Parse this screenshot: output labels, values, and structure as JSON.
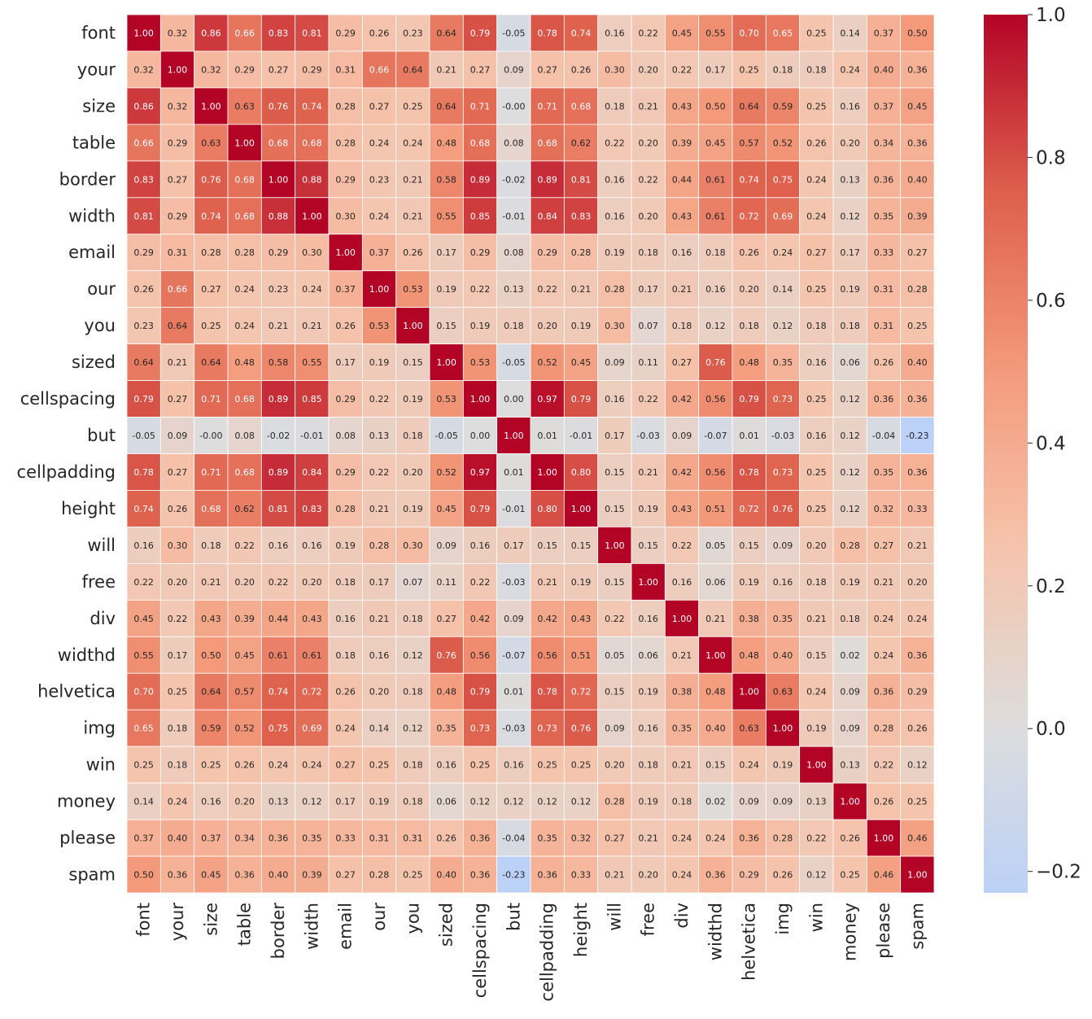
{
  "chart_data": {
    "type": "heatmap",
    "title": "",
    "xlabel": "",
    "ylabel": "",
    "labels": [
      "font",
      "your",
      "size",
      "table",
      "border",
      "width",
      "email",
      "our",
      "you",
      "sized",
      "cellspacing",
      "but",
      "cellpadding",
      "height",
      "will",
      "free",
      "div",
      "widthd",
      "helvetica",
      "img",
      "win",
      "money",
      "please",
      "spam"
    ],
    "matrix": [
      [
        1.0,
        0.32,
        0.86,
        0.66,
        0.83,
        0.81,
        0.29,
        0.26,
        0.23,
        0.64,
        0.79,
        -0.05,
        0.78,
        0.74,
        0.16,
        0.22,
        0.45,
        0.55,
        0.7,
        0.65,
        0.25,
        0.14,
        0.37,
        0.5
      ],
      [
        0.32,
        1.0,
        0.32,
        0.29,
        0.27,
        0.29,
        0.31,
        0.66,
        0.64,
        0.21,
        0.27,
        0.09,
        0.27,
        0.26,
        0.3,
        0.2,
        0.22,
        0.17,
        0.25,
        0.18,
        0.18,
        0.24,
        0.4,
        0.36
      ],
      [
        0.86,
        0.32,
        1.0,
        0.63,
        0.76,
        0.74,
        0.28,
        0.27,
        0.25,
        0.64,
        0.71,
        -0.0,
        0.71,
        0.68,
        0.18,
        0.21,
        0.43,
        0.5,
        0.64,
        0.59,
        0.25,
        0.16,
        0.37,
        0.45
      ],
      [
        0.66,
        0.29,
        0.63,
        1.0,
        0.68,
        0.68,
        0.28,
        0.24,
        0.24,
        0.48,
        0.68,
        0.08,
        0.68,
        0.62,
        0.22,
        0.2,
        0.39,
        0.45,
        0.57,
        0.52,
        0.26,
        0.2,
        0.34,
        0.36
      ],
      [
        0.83,
        0.27,
        0.76,
        0.68,
        1.0,
        0.88,
        0.29,
        0.23,
        0.21,
        0.58,
        0.89,
        -0.02,
        0.89,
        0.81,
        0.16,
        0.22,
        0.44,
        0.61,
        0.74,
        0.75,
        0.24,
        0.13,
        0.36,
        0.4
      ],
      [
        0.81,
        0.29,
        0.74,
        0.68,
        0.88,
        1.0,
        0.3,
        0.24,
        0.21,
        0.55,
        0.85,
        -0.01,
        0.84,
        0.83,
        0.16,
        0.2,
        0.43,
        0.61,
        0.72,
        0.69,
        0.24,
        0.12,
        0.35,
        0.39
      ],
      [
        0.29,
        0.31,
        0.28,
        0.28,
        0.29,
        0.3,
        1.0,
        0.37,
        0.26,
        0.17,
        0.29,
        0.08,
        0.29,
        0.28,
        0.19,
        0.18,
        0.16,
        0.18,
        0.26,
        0.24,
        0.27,
        0.17,
        0.33,
        0.27
      ],
      [
        0.26,
        0.66,
        0.27,
        0.24,
        0.23,
        0.24,
        0.37,
        1.0,
        0.53,
        0.19,
        0.22,
        0.13,
        0.22,
        0.21,
        0.28,
        0.17,
        0.21,
        0.16,
        0.2,
        0.14,
        0.25,
        0.19,
        0.31,
        0.28
      ],
      [
        0.23,
        0.64,
        0.25,
        0.24,
        0.21,
        0.21,
        0.26,
        0.53,
        1.0,
        0.15,
        0.19,
        0.18,
        0.2,
        0.19,
        0.3,
        0.07,
        0.18,
        0.12,
        0.18,
        0.12,
        0.18,
        0.18,
        0.31,
        0.25
      ],
      [
        0.64,
        0.21,
        0.64,
        0.48,
        0.58,
        0.55,
        0.17,
        0.19,
        0.15,
        1.0,
        0.53,
        -0.05,
        0.52,
        0.45,
        0.09,
        0.11,
        0.27,
        0.76,
        0.48,
        0.35,
        0.16,
        0.06,
        0.26,
        0.4
      ],
      [
        0.79,
        0.27,
        0.71,
        0.68,
        0.89,
        0.85,
        0.29,
        0.22,
        0.19,
        0.53,
        1.0,
        0.0,
        0.97,
        0.79,
        0.16,
        0.22,
        0.42,
        0.56,
        0.79,
        0.73,
        0.25,
        0.12,
        0.36,
        0.36
      ],
      [
        -0.05,
        0.09,
        -0.0,
        0.08,
        -0.02,
        -0.01,
        0.08,
        0.13,
        0.18,
        -0.05,
        0.0,
        1.0,
        0.01,
        -0.01,
        0.17,
        -0.03,
        0.09,
        -0.07,
        0.01,
        -0.03,
        0.16,
        0.12,
        -0.04,
        -0.23
      ],
      [
        0.78,
        0.27,
        0.71,
        0.68,
        0.89,
        0.84,
        0.29,
        0.22,
        0.2,
        0.52,
        0.97,
        0.01,
        1.0,
        0.8,
        0.15,
        0.21,
        0.42,
        0.56,
        0.78,
        0.73,
        0.25,
        0.12,
        0.35,
        0.36
      ],
      [
        0.74,
        0.26,
        0.68,
        0.62,
        0.81,
        0.83,
        0.28,
        0.21,
        0.19,
        0.45,
        0.79,
        -0.01,
        0.8,
        1.0,
        0.15,
        0.19,
        0.43,
        0.51,
        0.72,
        0.76,
        0.25,
        0.12,
        0.32,
        0.33
      ],
      [
        0.16,
        0.3,
        0.18,
        0.22,
        0.16,
        0.16,
        0.19,
        0.28,
        0.3,
        0.09,
        0.16,
        0.17,
        0.15,
        0.15,
        1.0,
        0.15,
        0.22,
        0.05,
        0.15,
        0.09,
        0.2,
        0.28,
        0.27,
        0.21
      ],
      [
        0.22,
        0.2,
        0.21,
        0.2,
        0.22,
        0.2,
        0.18,
        0.17,
        0.07,
        0.11,
        0.22,
        -0.03,
        0.21,
        0.19,
        0.15,
        1.0,
        0.16,
        0.06,
        0.19,
        0.16,
        0.18,
        0.19,
        0.21,
        0.2
      ],
      [
        0.45,
        0.22,
        0.43,
        0.39,
        0.44,
        0.43,
        0.16,
        0.21,
        0.18,
        0.27,
        0.42,
        0.09,
        0.42,
        0.43,
        0.22,
        0.16,
        1.0,
        0.21,
        0.38,
        0.35,
        0.21,
        0.18,
        0.24,
        0.24
      ],
      [
        0.55,
        0.17,
        0.5,
        0.45,
        0.61,
        0.61,
        0.18,
        0.16,
        0.12,
        0.76,
        0.56,
        -0.07,
        0.56,
        0.51,
        0.05,
        0.06,
        0.21,
        1.0,
        0.48,
        0.4,
        0.15,
        0.02,
        0.24,
        0.36
      ],
      [
        0.7,
        0.25,
        0.64,
        0.57,
        0.74,
        0.72,
        0.26,
        0.2,
        0.18,
        0.48,
        0.79,
        0.01,
        0.78,
        0.72,
        0.15,
        0.19,
        0.38,
        0.48,
        1.0,
        0.63,
        0.24,
        0.09,
        0.36,
        0.29
      ],
      [
        0.65,
        0.18,
        0.59,
        0.52,
        0.75,
        0.69,
        0.24,
        0.14,
        0.12,
        0.35,
        0.73,
        -0.03,
        0.73,
        0.76,
        0.09,
        0.16,
        0.35,
        0.4,
        0.63,
        1.0,
        0.19,
        0.09,
        0.28,
        0.26
      ],
      [
        0.25,
        0.18,
        0.25,
        0.26,
        0.24,
        0.24,
        0.27,
        0.25,
        0.18,
        0.16,
        0.25,
        0.16,
        0.25,
        0.25,
        0.2,
        0.18,
        0.21,
        0.15,
        0.24,
        0.19,
        1.0,
        0.13,
        0.22,
        0.12
      ],
      [
        0.14,
        0.24,
        0.16,
        0.2,
        0.13,
        0.12,
        0.17,
        0.19,
        0.18,
        0.06,
        0.12,
        0.12,
        0.12,
        0.12,
        0.28,
        0.19,
        0.18,
        0.02,
        0.09,
        0.09,
        0.13,
        1.0,
        0.26,
        0.25
      ],
      [
        0.37,
        0.4,
        0.37,
        0.34,
        0.36,
        0.35,
        0.33,
        0.31,
        0.31,
        0.26,
        0.36,
        -0.04,
        0.35,
        0.32,
        0.27,
        0.21,
        0.24,
        0.24,
        0.36,
        0.28,
        0.22,
        0.26,
        1.0,
        0.46
      ],
      [
        0.5,
        0.36,
        0.45,
        0.36,
        0.4,
        0.39,
        0.27,
        0.28,
        0.25,
        0.4,
        0.36,
        -0.23,
        0.36,
        0.33,
        0.21,
        0.2,
        0.24,
        0.36,
        0.29,
        0.26,
        0.12,
        0.25,
        0.46,
        1.0
      ]
    ],
    "colormap": "coolwarm",
    "vmin": -0.23,
    "vmax": 1.0,
    "center": 0.0,
    "colorbar": {
      "ticks": [
        1.0,
        0.8,
        0.6,
        0.4,
        0.2,
        0.0,
        -0.2
      ],
      "tick_labels": [
        "1.0",
        "0.8",
        "0.6",
        "0.4",
        "0.2",
        "0.0",
        "−0.2"
      ]
    },
    "annotations": true,
    "annotation_format": "2f",
    "grid_lines": "white",
    "legend": "colorbar-right"
  }
}
